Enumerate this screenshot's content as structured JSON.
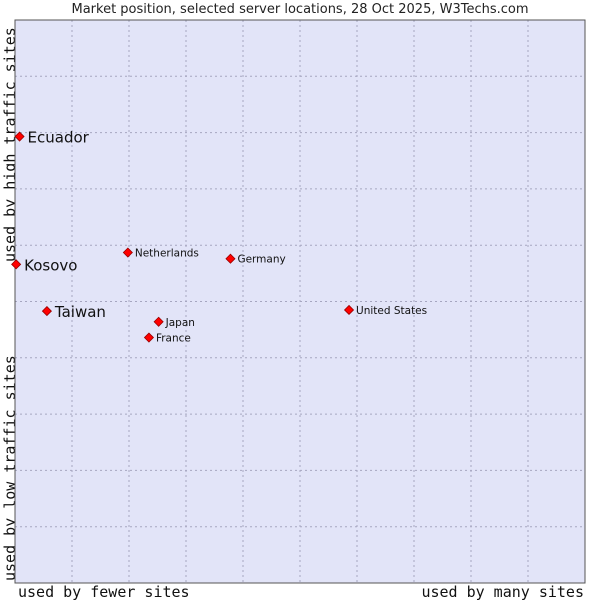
{
  "chart_data": {
    "type": "scatter",
    "title": "Market position, selected server locations, 28 Oct 2025, W3Techs.com",
    "xlabel_left": "used by fewer sites",
    "xlabel_right": "used by many sites",
    "ylabel_top": "used by high traffic sites",
    "ylabel_bottom": "used by low traffic sites",
    "xlim": [
      0,
      100
    ],
    "ylim": [
      0,
      100
    ],
    "grid": true,
    "points": [
      {
        "label": "Ecuador",
        "x": 0.8,
        "y": 79.3,
        "highlight": true
      },
      {
        "label": "Kosovo",
        "x": 0.2,
        "y": 56.6,
        "highlight": true
      },
      {
        "label": "Taiwan",
        "x": 5.6,
        "y": 48.3,
        "highlight": true
      },
      {
        "label": "Netherlands",
        "x": 19.8,
        "y": 58.7,
        "highlight": false
      },
      {
        "label": "Germany",
        "x": 37.8,
        "y": 57.6,
        "highlight": false
      },
      {
        "label": "United States",
        "x": 58.6,
        "y": 48.5,
        "highlight": false
      },
      {
        "label": "Japan",
        "x": 25.2,
        "y": 46.4,
        "highlight": false
      },
      {
        "label": "France",
        "x": 23.5,
        "y": 43.6,
        "highlight": false
      }
    ]
  },
  "colors": {
    "plot_background": "#e2e4f8",
    "grid": "#a6a6c0",
    "marker": "#ff0000",
    "marker_edge": "#990000"
  }
}
